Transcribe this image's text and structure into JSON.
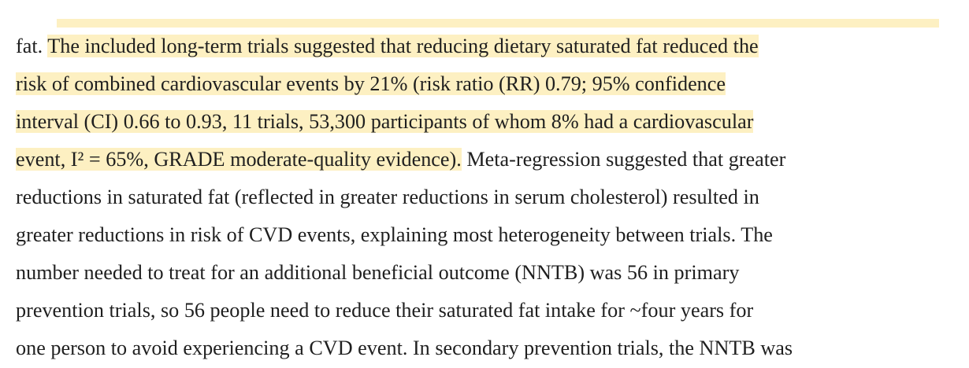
{
  "paragraph": {
    "lines": [
      {
        "pre": "fat. ",
        "highlight": "The included long-term trials suggested that reducing dietary saturated fat reduced the",
        "post": ""
      },
      {
        "pre": "",
        "highlight": "risk of combined cardiovascular events by 21% (risk ratio (RR) 0.79; 95% confidence",
        "post": ""
      },
      {
        "pre": "",
        "highlight": "interval (CI) 0.66 to 0.93, 11 trials, 53,300 participants of whom 8% had a cardiovascular",
        "post": ""
      },
      {
        "pre": "",
        "highlight": "event, I² = 65%, GRADE moderate-quality evidence).",
        "post": " Meta-regression suggested that greater"
      },
      {
        "pre": "reductions in saturated fat (reflected in greater reductions in serum cholesterol) resulted in",
        "highlight": "",
        "post": ""
      },
      {
        "pre": "greater reductions in risk of CVD events, explaining most heterogeneity between trials. The",
        "highlight": "",
        "post": ""
      },
      {
        "pre": "number needed to treat for an additional beneficial outcome (NNTB) was 56 in primary",
        "highlight": "",
        "post": ""
      },
      {
        "pre": "prevention trials, so 56 people need to reduce their saturated fat intake for ~four years for",
        "highlight": "",
        "post": ""
      },
      {
        "pre": "one person to avoid experiencing a CVD event. In secondary prevention trials, the NNTB was",
        "highlight": "",
        "post": ""
      }
    ]
  },
  "colors": {
    "highlight": "#fdf0c2",
    "text": "#1f1f1f",
    "background": "#ffffff"
  }
}
